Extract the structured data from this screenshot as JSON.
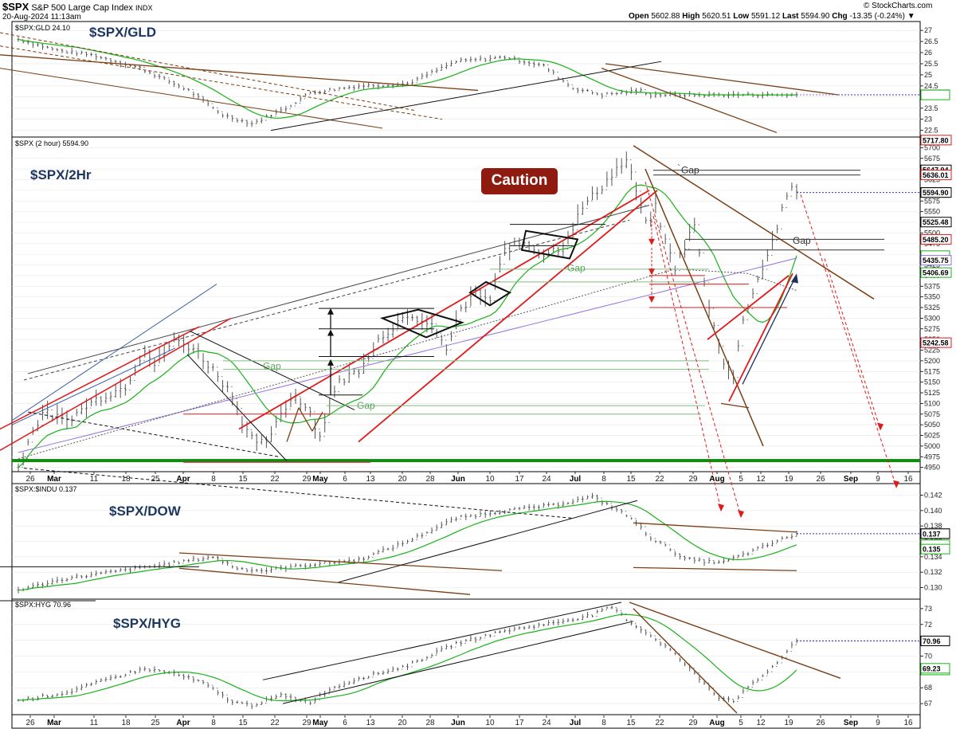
{
  "header": {
    "symbol": "$SPX",
    "name": "S&P 500 Large Cap Index",
    "exchange": "INDX",
    "date": "20-Aug-2024 11:13am",
    "open_label": "Open",
    "open": "5602.88",
    "high_label": "High",
    "high": "5620.51",
    "low_label": "Low",
    "low": "5591.12",
    "last_label": "Last",
    "last": "5594.90",
    "chg_label": "Chg",
    "chg": "-13.35 (-0.24%)",
    "credit": "© StockCharts.com"
  },
  "annotation": {
    "caution": "Caution",
    "gap": "Gap"
  },
  "colors": {
    "green": "#19b219",
    "price": "#555555",
    "brown": "#7a3e14",
    "red": "#e01a1a",
    "purple": "#9370db"
  },
  "chart_data": [
    {
      "type": "line",
      "id": "gld",
      "title": "$SPX/GLD",
      "legend": "$SPX:GLD 24.10",
      "last_value": 24.1,
      "ylim": [
        22.2,
        27.4
      ],
      "ticks": [
        22.5,
        23.0,
        23.5,
        24.0,
        24.5,
        25.0,
        25.5,
        26.0,
        26.5,
        27.0
      ],
      "keypoints": [
        [
          0,
          26.6
        ],
        [
          8,
          26.1
        ],
        [
          15,
          25.9
        ],
        [
          25,
          25.3
        ],
        [
          35,
          24.3
        ],
        [
          42,
          23.2
        ],
        [
          48,
          22.8
        ],
        [
          55,
          23.5
        ],
        [
          60,
          24.2
        ],
        [
          70,
          24.5
        ],
        [
          80,
          24.6
        ],
        [
          90,
          25.6
        ],
        [
          100,
          25.8
        ],
        [
          108,
          25.4
        ],
        [
          114,
          24.4
        ],
        [
          120,
          24.1
        ],
        [
          128,
          24.3
        ],
        [
          130,
          24.1
        ]
      ]
    },
    {
      "type": "line",
      "id": "spx",
      "title": "$SPX/2Hr",
      "legend": "$SPX (2 hour) 5594.90",
      "last_value": 5594.9,
      "ylim": [
        4940,
        5725
      ],
      "ticks": [
        4950,
        4975,
        5000,
        5025,
        5050,
        5075,
        5100,
        5125,
        5150,
        5175,
        5200,
        5225,
        5250,
        5275,
        5300,
        5325,
        5350,
        5375,
        5400,
        5425,
        5450,
        5475,
        5500,
        5525,
        5550,
        5575,
        5600,
        5625,
        5650,
        5675,
        5700
      ],
      "side_labels": [
        "5717.80",
        "5647.94",
        "5636.01",
        "5594.90",
        "5525.48",
        "5485.20",
        "5435.75",
        "5406.69",
        "5242.58"
      ],
      "keypoints": [
        [
          0,
          4950
        ],
        [
          2,
          5010
        ],
        [
          5,
          5080
        ],
        [
          10,
          5060
        ],
        [
          16,
          5110
        ],
        [
          22,
          5140
        ],
        [
          26,
          5230
        ],
        [
          28,
          5190
        ],
        [
          32,
          5250
        ],
        [
          36,
          5230
        ],
        [
          40,
          5180
        ],
        [
          44,
          5120
        ],
        [
          46,
          5060
        ],
        [
          49,
          5000
        ],
        [
          52,
          5020
        ],
        [
          54,
          5080
        ],
        [
          57,
          5120
        ],
        [
          60,
          5080
        ],
        [
          62,
          5020
        ],
        [
          64,
          5100
        ],
        [
          66,
          5150
        ],
        [
          70,
          5180
        ],
        [
          74,
          5250
        ],
        [
          78,
          5290
        ],
        [
          82,
          5300
        ],
        [
          86,
          5270
        ],
        [
          88,
          5220
        ],
        [
          90,
          5300
        ],
        [
          94,
          5360
        ],
        [
          97,
          5340
        ],
        [
          100,
          5460
        ],
        [
          104,
          5480
        ],
        [
          108,
          5450
        ],
        [
          112,
          5470
        ],
        [
          116,
          5560
        ],
        [
          120,
          5610
        ],
        [
          123,
          5650
        ],
        [
          125,
          5670
        ],
        [
          127,
          5600
        ],
        [
          129,
          5520
        ],
        [
          131,
          5560
        ],
        [
          133,
          5480
        ],
        [
          135,
          5420
        ],
        [
          137,
          5470
        ],
        [
          139,
          5520
        ],
        [
          141,
          5380
        ],
        [
          143,
          5280
        ],
        [
          145,
          5200
        ],
        [
          147,
          5160
        ],
        [
          149,
          5300
        ],
        [
          151,
          5360
        ],
        [
          153,
          5420
        ],
        [
          155,
          5480
        ],
        [
          157,
          5550
        ],
        [
          159,
          5610
        ],
        [
          160,
          5595
        ]
      ]
    },
    {
      "type": "line",
      "id": "dow",
      "title": "$SPX/DOW",
      "legend": "$SPX:$INDU 0.137",
      "last_value": 0.137,
      "ylim": [
        0.1285,
        0.1435
      ],
      "ticks": [
        0.13,
        0.132,
        0.134,
        0.136,
        0.138,
        0.14,
        0.142
      ],
      "side_labels": [
        "0.137",
        "0.135"
      ],
      "keypoints": [
        [
          0,
          0.1297
        ],
        [
          10,
          0.1312
        ],
        [
          20,
          0.1321
        ],
        [
          30,
          0.133
        ],
        [
          40,
          0.134
        ],
        [
          45,
          0.1325
        ],
        [
          50,
          0.1322
        ],
        [
          60,
          0.133
        ],
        [
          70,
          0.1336
        ],
        [
          80,
          0.136
        ],
        [
          90,
          0.139
        ],
        [
          100,
          0.14
        ],
        [
          110,
          0.1407
        ],
        [
          118,
          0.1418
        ],
        [
          122,
          0.1405
        ],
        [
          126,
          0.139
        ],
        [
          130,
          0.1365
        ],
        [
          134,
          0.135
        ],
        [
          137,
          0.1337
        ],
        [
          141,
          0.1334
        ],
        [
          145,
          0.1333
        ],
        [
          150,
          0.1345
        ],
        [
          155,
          0.1358
        ],
        [
          160,
          0.137
        ]
      ]
    },
    {
      "type": "line",
      "id": "hyg",
      "title": "$SPX/HYG",
      "legend": "$SPX:HYG 70.96",
      "last_value": 70.96,
      "ylim": [
        66.3,
        73.6
      ],
      "ticks": [
        67,
        68,
        69,
        70,
        71,
        72,
        73
      ],
      "side_labels": [
        "70.96",
        "69.23"
      ],
      "keypoints": [
        [
          0,
          67.2
        ],
        [
          10,
          67.7
        ],
        [
          20,
          68.7
        ],
        [
          26,
          69.2
        ],
        [
          32,
          68.9
        ],
        [
          38,
          68.3
        ],
        [
          44,
          67.1
        ],
        [
          48,
          66.9
        ],
        [
          54,
          67.5
        ],
        [
          60,
          67.1
        ],
        [
          64,
          67.9
        ],
        [
          70,
          68.6
        ],
        [
          80,
          69.4
        ],
        [
          90,
          70.8
        ],
        [
          100,
          71.6
        ],
        [
          110,
          72.1
        ],
        [
          118,
          72.6
        ],
        [
          122,
          73.1
        ],
        [
          126,
          72.1
        ],
        [
          130,
          71.3
        ],
        [
          134,
          70.4
        ],
        [
          138,
          69.2
        ],
        [
          141,
          68.3
        ],
        [
          144,
          67.4
        ],
        [
          147,
          67.2
        ],
        [
          152,
          68.5
        ],
        [
          156,
          69.6
        ],
        [
          160,
          70.96
        ]
      ]
    }
  ],
  "x_axis": {
    "labels": [
      "26",
      "Mar",
      "11",
      "18",
      "25",
      "Apr",
      "8",
      "15",
      "22",
      "29",
      "May",
      "6",
      "13",
      "20",
      "28",
      "Jun",
      "10",
      "17",
      "24",
      "Jul",
      "8",
      "15",
      "22",
      "29",
      "Aug",
      "5",
      "12",
      "19",
      "26",
      "Sep",
      "9",
      "16"
    ],
    "bold": [
      "Mar",
      "Apr",
      "May",
      "Jun",
      "Jul",
      "Aug",
      "Sep"
    ]
  }
}
